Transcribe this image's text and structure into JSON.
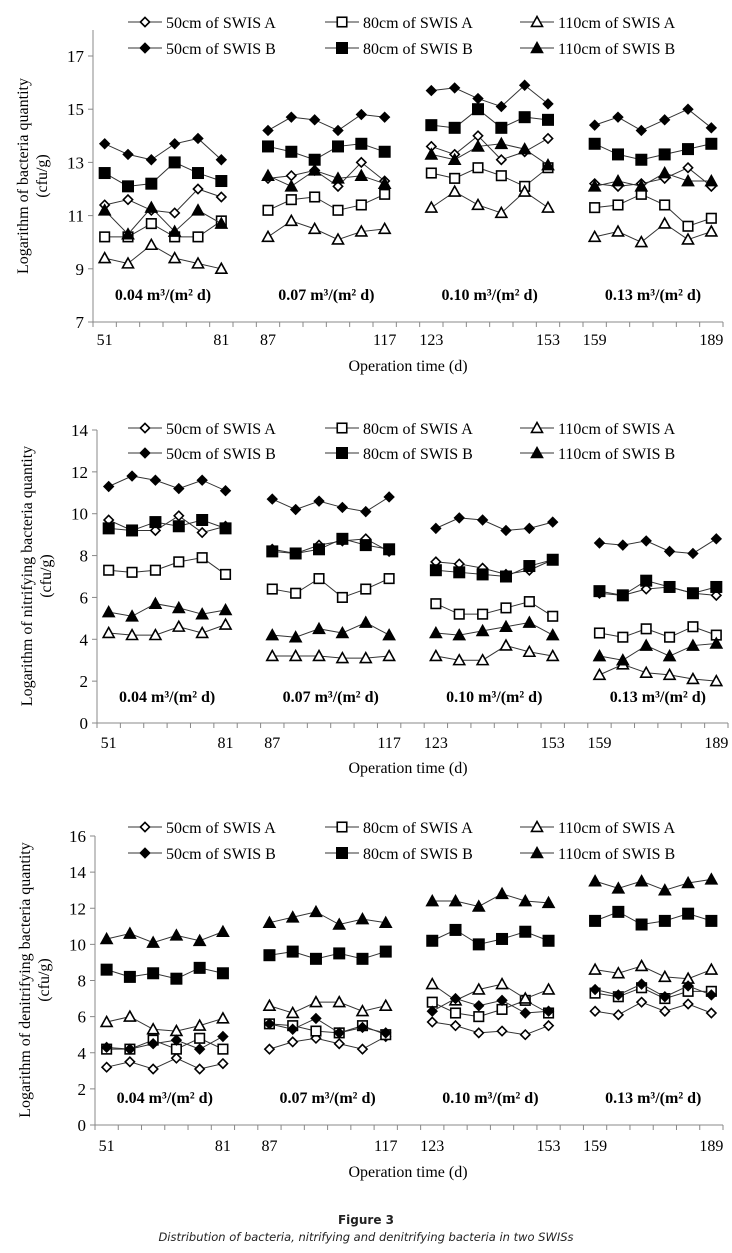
{
  "figure": {
    "title": "Figure 3",
    "caption": "Distribution of bacteria, nitrifying and denitrifying bacteria in two SWISs"
  },
  "legend_entries": [
    {
      "name": "50cm of SWIS A",
      "marker": "diamond-open"
    },
    {
      "name": "80cm of SWIS A",
      "marker": "square-open"
    },
    {
      "name": "110cm of SWIS A",
      "marker": "triangle-open"
    },
    {
      "name": "50cm of SWIS B",
      "marker": "diamond-filled"
    },
    {
      "name": "80cm of SWIS B",
      "marker": "square-filled"
    },
    {
      "name": "110cm of SWIS B",
      "marker": "triangle-filled"
    }
  ],
  "chart_data": [
    {
      "type": "line",
      "title": "",
      "xlabel": "Operation time (d)",
      "ylabel": "Logarithm of bacteria quantity",
      "ylabel2": "(cfu/g)",
      "ylim": [
        7,
        18
      ],
      "yticks": [
        7,
        9,
        11,
        13,
        15,
        17
      ],
      "grid": false,
      "legend": "top",
      "x_tick_labels": [
        "51",
        "81",
        "87",
        "117",
        "123",
        "153",
        "159",
        "189"
      ],
      "groups": [
        "0.04 m³/(m² d)",
        "0.07 m³/(m² d)",
        "0.10 m³/(m² d)",
        "0.13 m³/(m² d)"
      ],
      "x": [
        [
          51,
          57,
          63,
          69,
          75,
          81
        ],
        [
          87,
          93,
          99,
          105,
          111,
          117
        ],
        [
          123,
          129,
          135,
          141,
          147,
          153
        ],
        [
          159,
          165,
          171,
          177,
          183,
          189
        ]
      ],
      "series": [
        {
          "name": "50cm of SWIS A",
          "values": [
            [
              11.4,
              11.6,
              11.2,
              11.1,
              12.0,
              11.7
            ],
            [
              12.4,
              12.5,
              12.7,
              12.1,
              13.0,
              12.3
            ],
            [
              13.6,
              13.3,
              14.0,
              13.1,
              13.4,
              13.9
            ],
            [
              12.2,
              12.1,
              12.2,
              12.4,
              12.8,
              12.1
            ]
          ]
        },
        {
          "name": "80cm of SWIS A",
          "values": [
            [
              10.2,
              10.2,
              10.7,
              10.2,
              10.2,
              10.8
            ],
            [
              11.2,
              11.6,
              11.7,
              11.2,
              11.4,
              11.8
            ],
            [
              12.6,
              12.4,
              12.8,
              12.5,
              12.1,
              12.8
            ],
            [
              11.3,
              11.4,
              11.8,
              11.4,
              10.6,
              10.9
            ]
          ]
        },
        {
          "name": "110cm of SWIS A",
          "values": [
            [
              9.4,
              9.2,
              9.9,
              9.4,
              9.2,
              9.0
            ],
            [
              10.2,
              10.8,
              10.5,
              10.1,
              10.4,
              10.5
            ],
            [
              11.3,
              11.9,
              11.4,
              11.1,
              11.9,
              11.3
            ],
            [
              10.2,
              10.4,
              10.0,
              10.7,
              10.1,
              10.4
            ]
          ]
        },
        {
          "name": "50cm of SWIS B",
          "values": [
            [
              13.7,
              13.3,
              13.1,
              13.7,
              13.9,
              13.1
            ],
            [
              14.2,
              14.7,
              14.6,
              14.2,
              14.8,
              14.7
            ],
            [
              15.7,
              15.8,
              15.4,
              15.1,
              15.9,
              15.2
            ],
            [
              14.4,
              14.7,
              14.2,
              14.6,
              15.0,
              14.3
            ]
          ]
        },
        {
          "name": "80cm of SWIS B",
          "values": [
            [
              12.6,
              12.1,
              12.2,
              13.0,
              12.6,
              12.3
            ],
            [
              13.6,
              13.4,
              13.1,
              13.6,
              13.7,
              13.4
            ],
            [
              14.4,
              14.3,
              15.0,
              14.3,
              14.7,
              14.6
            ],
            [
              13.7,
              13.3,
              13.1,
              13.3,
              13.5,
              13.7
            ]
          ]
        },
        {
          "name": "110cm of SWIS B",
          "values": [
            [
              11.2,
              10.3,
              11.3,
              10.4,
              11.2,
              10.7
            ],
            [
              12.5,
              12.1,
              12.7,
              12.4,
              12.5,
              12.2
            ],
            [
              13.3,
              13.1,
              13.6,
              13.7,
              13.5,
              12.9
            ],
            [
              12.1,
              12.3,
              12.1,
              12.6,
              12.3,
              12.3
            ]
          ]
        }
      ]
    },
    {
      "type": "line",
      "title": "",
      "xlabel": "Operation time (d)",
      "ylabel": "Logarithm of nitrifying bacteria quantity",
      "ylabel2": "(cfu/g)",
      "ylim": [
        0,
        14
      ],
      "yticks": [
        0,
        2,
        4,
        6,
        8,
        10,
        12,
        14
      ],
      "grid": false,
      "legend": "top",
      "x_tick_labels": [
        "51",
        "81",
        "87",
        "117",
        "123",
        "153",
        "159",
        "189"
      ],
      "groups": [
        "0.04 m³/(m² d)",
        "0.07 m³/(m² d)",
        "0.10 m³/(m² d)",
        "0.13 m³/(m² d)"
      ],
      "x": [
        [
          51,
          57,
          63,
          69,
          75,
          81
        ],
        [
          87,
          93,
          99,
          105,
          111,
          117
        ],
        [
          123,
          129,
          135,
          141,
          147,
          153
        ],
        [
          159,
          165,
          171,
          177,
          183,
          189
        ]
      ],
      "series": [
        {
          "name": "50cm of SWIS A",
          "values": [
            [
              9.7,
              9.2,
              9.2,
              9.9,
              9.1,
              9.4
            ],
            [
              8.3,
              8.1,
              8.5,
              8.7,
              8.8,
              8.2
            ],
            [
              7.7,
              7.6,
              7.4,
              7.1,
              7.3,
              7.8
            ],
            [
              6.2,
              6.1,
              6.4,
              6.5,
              6.2,
              6.1
            ]
          ]
        },
        {
          "name": "80cm of SWIS A",
          "values": [
            [
              7.3,
              7.2,
              7.3,
              7.7,
              7.9,
              7.1
            ],
            [
              6.4,
              6.2,
              6.9,
              6.0,
              6.4,
              6.9
            ],
            [
              5.7,
              5.2,
              5.2,
              5.5,
              5.8,
              5.1
            ],
            [
              4.3,
              4.1,
              4.5,
              4.1,
              4.6,
              4.2
            ]
          ]
        },
        {
          "name": "110cm of SWIS A",
          "values": [
            [
              4.3,
              4.2,
              4.2,
              4.6,
              4.3,
              4.7
            ],
            [
              3.2,
              3.2,
              3.2,
              3.1,
              3.1,
              3.2
            ],
            [
              3.2,
              3.0,
              3.0,
              3.7,
              3.4,
              3.2
            ],
            [
              2.3,
              2.8,
              2.4,
              2.3,
              2.1,
              2.0
            ]
          ]
        },
        {
          "name": "50cm of SWIS B",
          "values": [
            [
              11.3,
              11.8,
              11.6,
              11.2,
              11.6,
              11.1
            ],
            [
              10.7,
              10.2,
              10.6,
              10.3,
              10.1,
              10.8
            ],
            [
              9.3,
              9.8,
              9.7,
              9.2,
              9.3,
              9.6
            ],
            [
              8.6,
              8.5,
              8.7,
              8.2,
              8.1,
              8.8
            ]
          ]
        },
        {
          "name": "80cm of SWIS B",
          "values": [
            [
              9.3,
              9.2,
              9.6,
              9.4,
              9.7,
              9.3
            ],
            [
              8.2,
              8.1,
              8.3,
              8.8,
              8.5,
              8.3
            ],
            [
              7.3,
              7.2,
              7.1,
              7.0,
              7.5,
              7.8
            ],
            [
              6.3,
              6.1,
              6.8,
              6.5,
              6.2,
              6.5
            ]
          ]
        },
        {
          "name": "110cm of SWIS B",
          "values": [
            [
              5.3,
              5.1,
              5.7,
              5.5,
              5.2,
              5.4
            ],
            [
              4.2,
              4.1,
              4.5,
              4.3,
              4.8,
              4.2
            ],
            [
              4.3,
              4.2,
              4.4,
              4.6,
              4.8,
              4.2
            ],
            [
              3.2,
              3.0,
              3.7,
              3.2,
              3.7,
              3.8
            ]
          ]
        }
      ]
    },
    {
      "type": "line",
      "title": "",
      "xlabel": "Operation time (d)",
      "ylabel": "Logarithm of denitrifying bacteria quantity",
      "ylabel2": "(cfu/g)",
      "ylim": [
        0,
        16
      ],
      "yticks": [
        0,
        2,
        4,
        6,
        8,
        10,
        12,
        14,
        16
      ],
      "grid": false,
      "legend": "top",
      "x_tick_labels": [
        "51",
        "81",
        "87",
        "117",
        "123",
        "153",
        "159",
        "189"
      ],
      "groups": [
        "0.04 m³/(m² d)",
        "0.07 m³/(m² d)",
        "0.10 m³/(m² d)",
        "0.13 m³/(m² d)"
      ],
      "x": [
        [
          51,
          57,
          63,
          69,
          75,
          81
        ],
        [
          87,
          93,
          99,
          105,
          111,
          117
        ],
        [
          123,
          129,
          135,
          141,
          147,
          153
        ],
        [
          159,
          165,
          171,
          177,
          183,
          189
        ]
      ],
      "series": [
        {
          "name": "50cm of SWIS A",
          "values": [
            [
              3.2,
              3.5,
              3.1,
              3.7,
              3.1,
              3.4
            ],
            [
              4.2,
              4.6,
              4.8,
              4.5,
              4.2,
              4.9
            ],
            [
              5.7,
              5.5,
              5.1,
              5.2,
              5.0,
              5.5
            ],
            [
              6.3,
              6.1,
              6.8,
              6.3,
              6.7,
              6.2
            ]
          ]
        },
        {
          "name": "80cm of SWIS A",
          "values": [
            [
              4.2,
              4.2,
              4.7,
              4.2,
              4.8,
              4.2
            ],
            [
              5.6,
              5.5,
              5.2,
              5.1,
              5.5,
              5.0
            ],
            [
              6.8,
              6.2,
              6.0,
              6.4,
              6.9,
              6.2
            ],
            [
              7.3,
              7.1,
              7.6,
              7.0,
              7.4,
              7.4
            ]
          ]
        },
        {
          "name": "110cm of SWIS A",
          "values": [
            [
              5.7,
              6.0,
              5.3,
              5.2,
              5.5,
              5.9
            ],
            [
              6.6,
              6.2,
              6.8,
              6.8,
              6.3,
              6.6
            ],
            [
              7.8,
              6.9,
              7.5,
              7.8,
              7.0,
              7.5
            ],
            [
              8.6,
              8.4,
              8.8,
              8.2,
              8.1,
              8.6
            ]
          ]
        },
        {
          "name": "50cm of SWIS B",
          "values": [
            [
              4.3,
              4.2,
              4.5,
              4.7,
              4.2,
              4.9
            ],
            [
              5.6,
              5.3,
              5.9,
              5.1,
              5.4,
              5.1
            ],
            [
              6.3,
              7.0,
              6.6,
              6.9,
              6.2,
              6.3
            ],
            [
              7.5,
              7.2,
              7.8,
              7.1,
              7.7,
              7.2
            ]
          ]
        },
        {
          "name": "80cm of SWIS B",
          "values": [
            [
              8.6,
              8.2,
              8.4,
              8.1,
              8.7,
              8.4
            ],
            [
              9.4,
              9.6,
              9.2,
              9.5,
              9.2,
              9.6
            ],
            [
              10.2,
              10.8,
              10.0,
              10.3,
              10.7,
              10.2
            ],
            [
              11.3,
              11.8,
              11.1,
              11.3,
              11.7,
              11.3
            ]
          ]
        },
        {
          "name": "110cm of SWIS B",
          "values": [
            [
              10.3,
              10.6,
              10.1,
              10.5,
              10.2,
              10.7
            ],
            [
              11.2,
              11.5,
              11.8,
              11.1,
              11.4,
              11.2
            ],
            [
              12.4,
              12.4,
              12.1,
              12.8,
              12.4,
              12.3
            ],
            [
              13.5,
              13.1,
              13.5,
              13.0,
              13.4,
              13.6
            ]
          ]
        }
      ]
    }
  ]
}
